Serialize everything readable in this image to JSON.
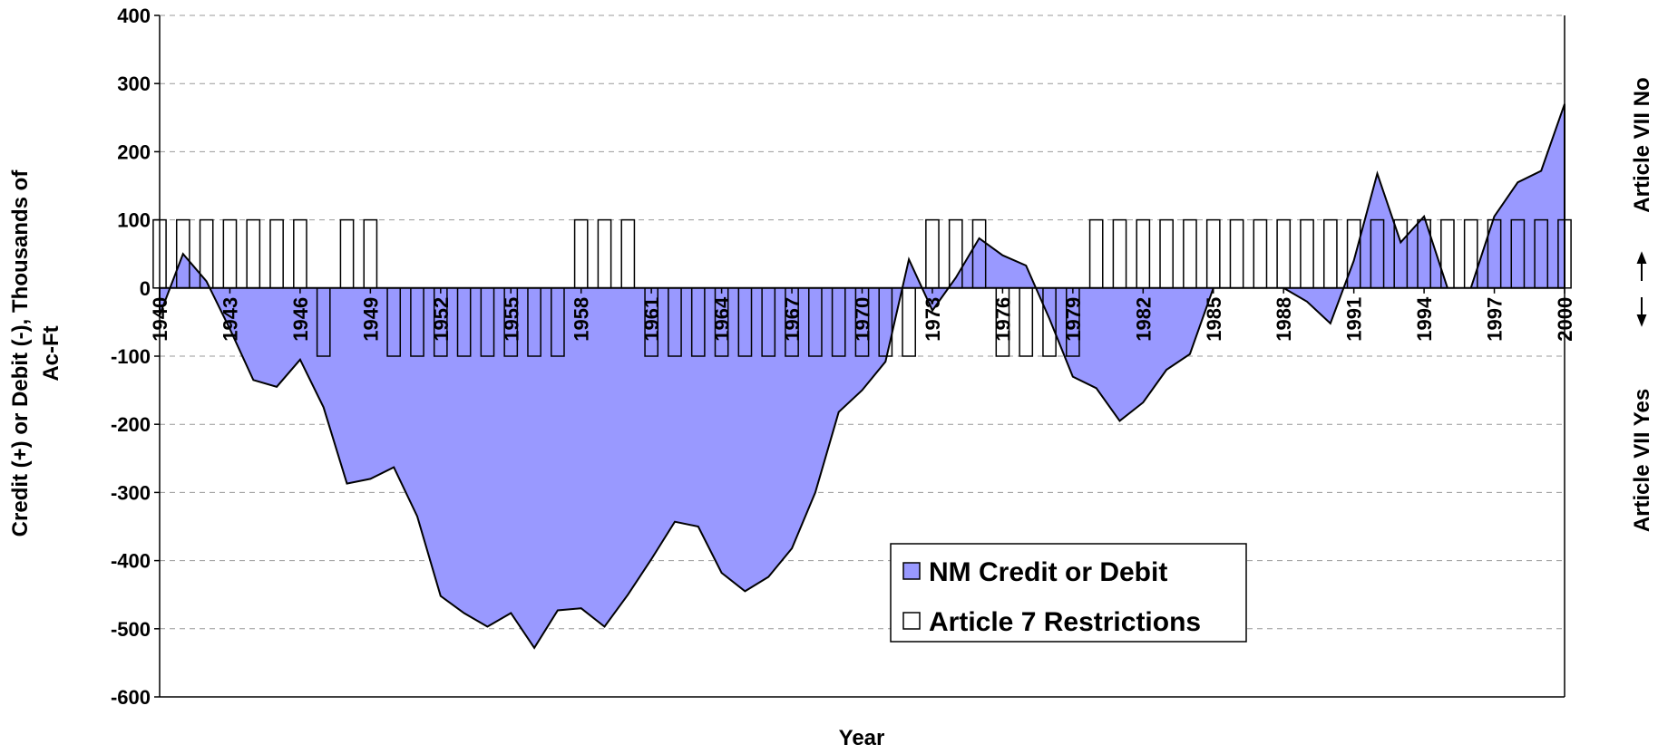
{
  "chart_data": {
    "type": "area",
    "xlabel": "Year",
    "ylabel": [
      "Credit (+) or Debit (-), Thousands of",
      "Ac-Ft"
    ],
    "y2_labels": [
      "Article VII No",
      "Article VII Yes"
    ],
    "x": [
      1940,
      1941,
      1942,
      1943,
      1944,
      1945,
      1946,
      1947,
      1948,
      1949,
      1950,
      1951,
      1952,
      1953,
      1954,
      1955,
      1956,
      1957,
      1958,
      1959,
      1960,
      1961,
      1962,
      1963,
      1964,
      1965,
      1966,
      1967,
      1968,
      1969,
      1970,
      1971,
      1972,
      1973,
      1974,
      1975,
      1976,
      1977,
      1978,
      1979,
      1980,
      1981,
      1982,
      1983,
      1984,
      1985,
      1986,
      1987,
      1988,
      1989,
      1990,
      1991,
      1992,
      1993,
      1994,
      1995,
      1996,
      1997,
      1998,
      1999,
      2000
    ],
    "xlim": [
      1940,
      2000
    ],
    "xticks": [
      1940,
      1943,
      1946,
      1949,
      1952,
      1955,
      1958,
      1961,
      1964,
      1967,
      1970,
      1973,
      1976,
      1979,
      1982,
      1985,
      1988,
      1991,
      1994,
      1997,
      2000
    ],
    "ylim": [
      -600,
      400
    ],
    "yticks": [
      -600,
      -500,
      -400,
      -300,
      -200,
      -100,
      0,
      100,
      200,
      300,
      400
    ],
    "grid": true,
    "legend": "bottom-center",
    "series": [
      {
        "name": "NM Credit or Debit",
        "color": "#9999ff",
        "values": [
          -40,
          50,
          10,
          -60,
          -135,
          -145,
          -105,
          -175,
          -287,
          -280,
          -263,
          -335,
          -452,
          -477,
          -497,
          -477,
          -528,
          -473,
          -470,
          -497,
          -450,
          -398,
          -343,
          -350,
          -418,
          -445,
          -424,
          -382,
          -300,
          -182,
          -150,
          -108,
          42,
          -33,
          15,
          73,
          48,
          33,
          -45,
          -130,
          -147,
          -195,
          -168,
          -120,
          -97,
          0,
          0,
          0,
          0,
          -20,
          -52,
          40,
          168,
          67,
          105,
          0,
          0,
          105,
          155,
          172,
          270
        ]
      },
      {
        "name": "Article 7 Restrictions",
        "color": "#ffffff",
        "values": [
          100,
          100,
          100,
          100,
          100,
          100,
          100,
          -100,
          100,
          100,
          -100,
          -100,
          -100,
          -100,
          -100,
          -100,
          -100,
          -100,
          100,
          100,
          100,
          -100,
          -100,
          -100,
          -100,
          -100,
          -100,
          -100,
          -100,
          -100,
          -100,
          -100,
          -100,
          100,
          100,
          100,
          -100,
          -100,
          -100,
          -100,
          100,
          100,
          100,
          100,
          100,
          100,
          100,
          100,
          100,
          100,
          100,
          100,
          100,
          100,
          100,
          100,
          100,
          100,
          100,
          100,
          100
        ]
      }
    ]
  }
}
